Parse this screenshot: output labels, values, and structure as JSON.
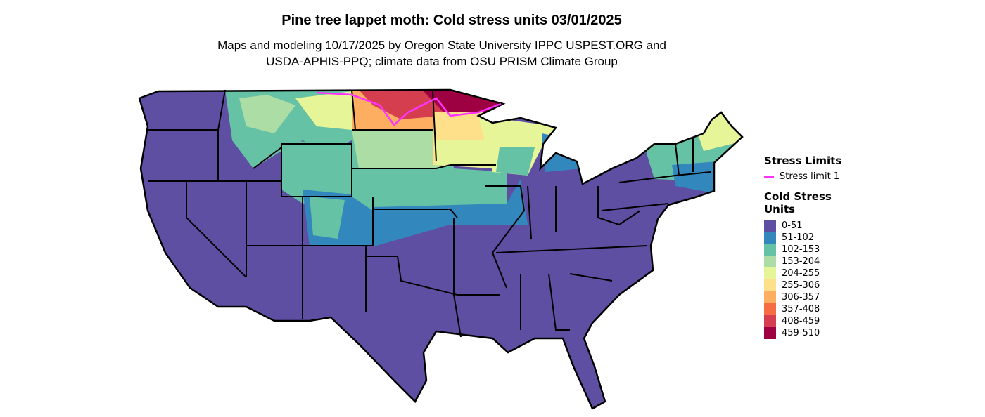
{
  "title": "Pine tree lappet moth: Cold stress units 03/01/2025",
  "subtitle_line1": "Maps and modeling 10/17/2025 by Oregon State University IPPC USPEST.ORG and",
  "subtitle_line2": "USDA-APHIS-PPQ; climate data from OSU PRISM Climate Group",
  "legend": {
    "stress_title": "Stress Limits",
    "stress_item": "Stress limit 1",
    "stress_color": "#ff33ff",
    "units_title_1": "Cold Stress",
    "units_title_2": "Units",
    "items": [
      {
        "label": "0-51",
        "color": "#5E4FA2"
      },
      {
        "label": "51-102",
        "color": "#3288BD"
      },
      {
        "label": "102-153",
        "color": "#66C2A5"
      },
      {
        "label": "153-204",
        "color": "#ABDDA4"
      },
      {
        "label": "204-255",
        "color": "#E6F598"
      },
      {
        "label": "255-306",
        "color": "#FEE08B"
      },
      {
        "label": "306-357",
        "color": "#FDAE61"
      },
      {
        "label": "357-408",
        "color": "#F46D43"
      },
      {
        "label": "408-459",
        "color": "#D53E4F"
      },
      {
        "label": "459-510",
        "color": "#9E0142"
      }
    ]
  }
}
